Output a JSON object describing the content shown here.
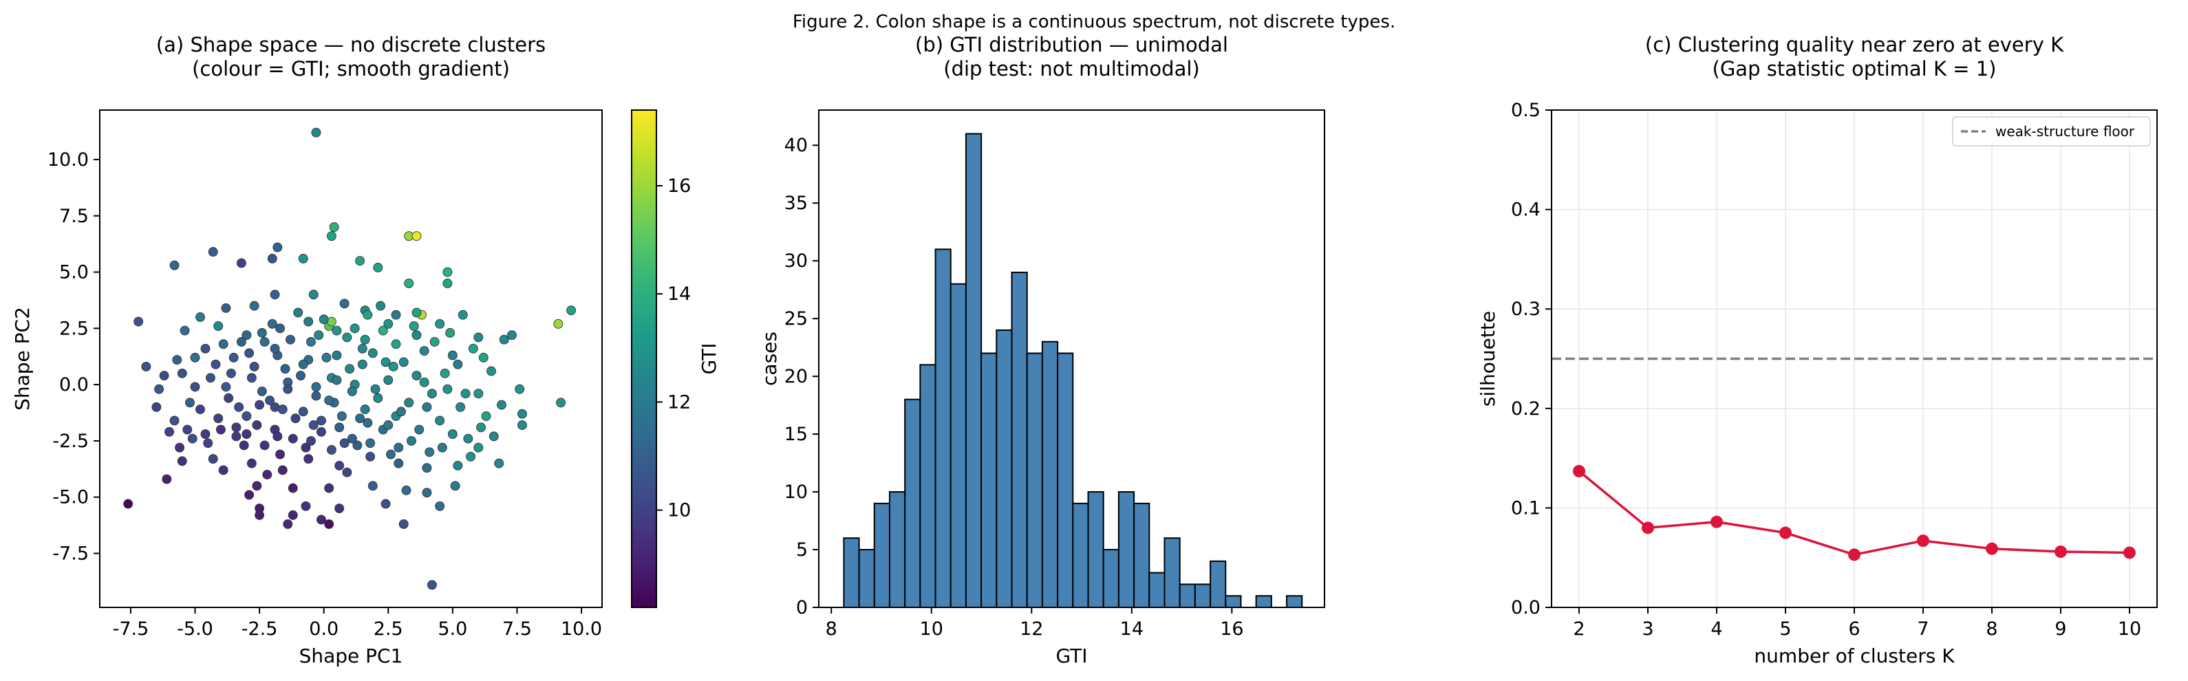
{
  "figure": {
    "title": "Figure 2.  Colon shape is a continuous spectrum, not discrete types."
  },
  "colors": {
    "hist_fill": "#4682b4",
    "line": "#dc143c",
    "floor": "#808080",
    "grid": "#e6e6e6"
  },
  "chart_data": [
    {
      "id": "a",
      "type": "scatter",
      "title": [
        "(a) Shape space — no discrete clusters",
        "(colour = GTI; smooth gradient)"
      ],
      "xlabel": "Shape PC1",
      "ylabel": "Shape PC2",
      "xlim": [
        -8.7,
        10.8
      ],
      "ylim": [
        -9.9,
        12.2
      ],
      "xticks": [
        -7.5,
        -5.0,
        -2.5,
        0.0,
        2.5,
        5.0,
        7.5,
        10.0
      ],
      "yticks": [
        -7.5,
        -5.0,
        -2.5,
        0.0,
        2.5,
        5.0,
        7.5,
        10.0
      ],
      "grid": false,
      "colormap": "viridis",
      "colorbar": {
        "label": "GTI",
        "range": [
          8.2,
          17.4
        ],
        "ticks": [
          10,
          12,
          14,
          16
        ]
      },
      "points": [
        [
          -0.3,
          11.2,
          12.5
        ],
        [
          3.3,
          6.6,
          16.0
        ],
        [
          3.6,
          6.6,
          17.2
        ],
        [
          0.4,
          7.0,
          14.0
        ],
        [
          0.3,
          6.6,
          13.5
        ],
        [
          -1.8,
          6.1,
          11.0
        ],
        [
          -2.0,
          5.6,
          10.6
        ],
        [
          -4.3,
          5.9,
          11.0
        ],
        [
          -5.8,
          5.3,
          11.3
        ],
        [
          -3.2,
          5.4,
          10.0
        ],
        [
          -0.8,
          5.6,
          13.0
        ],
        [
          1.4,
          5.5,
          13.5
        ],
        [
          2.1,
          5.2,
          13.5
        ],
        [
          3.3,
          4.5,
          14.0
        ],
        [
          4.8,
          5.0,
          14.0
        ],
        [
          4.8,
          4.5,
          13.5
        ],
        [
          9.6,
          3.3,
          13.5
        ],
        [
          9.1,
          2.7,
          16.0
        ],
        [
          3.8,
          3.1,
          16.3
        ],
        [
          5.4,
          3.1,
          13.0
        ],
        [
          1.6,
          3.3,
          12.5
        ],
        [
          0.8,
          3.6,
          11.5
        ],
        [
          -0.4,
          4.0,
          12.5
        ],
        [
          -1.9,
          4.0,
          11.0
        ],
        [
          -3.8,
          3.4,
          11.0
        ],
        [
          -4.8,
          3.0,
          12.0
        ],
        [
          -4.1,
          2.6,
          12.5
        ],
        [
          -2.7,
          3.5,
          11.5
        ],
        [
          -7.2,
          2.8,
          10.5
        ],
        [
          -5.4,
          2.4,
          11.5
        ],
        [
          -3.5,
          1.2,
          10.8
        ],
        [
          -3.0,
          2.2,
          11.3
        ],
        [
          -1.7,
          2.5,
          11.0
        ],
        [
          -0.6,
          2.8,
          12.0
        ],
        [
          0.5,
          2.4,
          13.0
        ],
        [
          0.2,
          2.6,
          15.0
        ],
        [
          0.3,
          2.8,
          15.5
        ],
        [
          1.7,
          3.1,
          13.5
        ],
        [
          2.8,
          3.1,
          12.0
        ],
        [
          2.5,
          2.7,
          13.0
        ],
        [
          3.6,
          2.2,
          12.5
        ],
        [
          4.5,
          2.7,
          13.0
        ],
        [
          6.0,
          2.1,
          12.5
        ],
        [
          7.0,
          2.0,
          12.5
        ],
        [
          7.3,
          2.2,
          12.5
        ],
        [
          6.2,
          1.2,
          13.5
        ],
        [
          5.0,
          1.3,
          12.0
        ],
        [
          3.9,
          1.5,
          12.5
        ],
        [
          2.8,
          1.8,
          13.5
        ],
        [
          1.5,
          1.6,
          12.5
        ],
        [
          0.5,
          1.3,
          12.0
        ],
        [
          -0.6,
          1.1,
          11.5
        ],
        [
          -1.8,
          1.3,
          11.0
        ],
        [
          -2.9,
          1.4,
          10.5
        ],
        [
          -4.2,
          0.9,
          10.5
        ],
        [
          -5.5,
          0.5,
          10.5
        ],
        [
          -6.9,
          0.8,
          10.5
        ],
        [
          -6.4,
          -0.2,
          10.8
        ],
        [
          -5.2,
          -0.8,
          11.0
        ],
        [
          -3.8,
          -0.1,
          10.8
        ],
        [
          -2.4,
          -0.3,
          11.0
        ],
        [
          -1.4,
          0.1,
          11.0
        ],
        [
          -0.3,
          -0.1,
          11.5
        ],
        [
          0.3,
          0.3,
          12.5
        ],
        [
          1.2,
          0.0,
          12.5
        ],
        [
          2.5,
          0.2,
          12.5
        ],
        [
          3.6,
          0.4,
          12.5
        ],
        [
          4.8,
          -0.2,
          13.0
        ],
        [
          6.0,
          -0.4,
          13.0
        ],
        [
          7.6,
          -0.2,
          13.0
        ],
        [
          9.2,
          -0.8,
          13.0
        ],
        [
          7.7,
          -1.3,
          12.5
        ],
        [
          7.7,
          -1.8,
          12.5
        ],
        [
          6.3,
          -1.4,
          13.5
        ],
        [
          5.3,
          -1.0,
          12.5
        ],
        [
          4.0,
          -1.0,
          12.0
        ],
        [
          2.8,
          -1.4,
          12.5
        ],
        [
          1.6,
          -1.1,
          12.0
        ],
        [
          0.4,
          -0.8,
          11.5
        ],
        [
          -0.8,
          -1.2,
          10.5
        ],
        [
          -1.9,
          -1.0,
          10.2
        ],
        [
          -3.0,
          -1.4,
          10.5
        ],
        [
          -4.1,
          -1.5,
          10.0
        ],
        [
          -5.8,
          -1.6,
          10.5
        ],
        [
          -5.3,
          -2.0,
          10.0
        ],
        [
          -4.5,
          -2.6,
          10.0
        ],
        [
          -3.4,
          -2.3,
          9.8
        ],
        [
          -2.3,
          -2.7,
          9.5
        ],
        [
          -1.2,
          -2.4,
          9.5
        ],
        [
          -0.1,
          -2.1,
          10.0
        ],
        [
          1.1,
          -2.4,
          11.0
        ],
        [
          2.3,
          -2.0,
          11.5
        ],
        [
          3.4,
          -2.5,
          12.0
        ],
        [
          4.6,
          -2.8,
          12.0
        ],
        [
          6.0,
          -2.8,
          13.0
        ],
        [
          5.7,
          -3.2,
          13.0
        ],
        [
          6.8,
          -3.5,
          12.5
        ],
        [
          5.2,
          -3.6,
          12.5
        ],
        [
          4.0,
          -3.7,
          11.5
        ],
        [
          2.9,
          -3.5,
          11.0
        ],
        [
          1.8,
          -3.2,
          10.5
        ],
        [
          0.6,
          -3.6,
          10.0
        ],
        [
          -0.6,
          -3.3,
          9.5
        ],
        [
          -1.6,
          -3.8,
          9.2
        ],
        [
          -2.8,
          -3.5,
          9.5
        ],
        [
          -4.3,
          -3.3,
          10.2
        ],
        [
          -5.6,
          -2.8,
          9.5
        ],
        [
          -5.5,
          -3.4,
          9.5
        ],
        [
          -6.1,
          -4.2,
          9.0
        ],
        [
          -2.6,
          -4.5,
          9.2
        ],
        [
          -1.2,
          -4.6,
          9.0
        ],
        [
          0.2,
          -4.6,
          9.5
        ],
        [
          1.9,
          -4.5,
          11.0
        ],
        [
          3.2,
          -4.7,
          11.5
        ],
        [
          4.0,
          -4.8,
          11.5
        ],
        [
          5.1,
          -4.5,
          12.0
        ],
        [
          4.5,
          -5.4,
          11.5
        ],
        [
          2.4,
          -5.3,
          10.5
        ],
        [
          0.6,
          -5.5,
          9.5
        ],
        [
          -0.7,
          -5.4,
          9.5
        ],
        [
          -2.9,
          -4.9,
          9.0
        ],
        [
          -2.5,
          -5.5,
          9.0
        ],
        [
          -2.5,
          -5.8,
          9.0
        ],
        [
          -1.2,
          -5.8,
          9.2
        ],
        [
          0.2,
          -6.2,
          8.6
        ],
        [
          -1.4,
          -6.2,
          9.2
        ],
        [
          -0.1,
          -6.0,
          9.2
        ],
        [
          3.1,
          -6.2,
          10.5
        ],
        [
          -7.6,
          -5.3,
          8.4
        ],
        [
          4.2,
          -8.9,
          10.5
        ],
        [
          -6.2,
          0.4,
          10.2
        ],
        [
          -6.0,
          -2.1,
          10.0
        ],
        [
          -5.1,
          -2.4,
          10.5
        ],
        [
          -5.0,
          -0.1,
          10.5
        ],
        [
          -4.6,
          1.6,
          10.5
        ],
        [
          -4.0,
          -2.0,
          9.5
        ],
        [
          -3.6,
          0.5,
          10.5
        ],
        [
          -3.3,
          -1.0,
          10.3
        ],
        [
          -3.1,
          -2.7,
          9.5
        ],
        [
          -2.8,
          0.3,
          10.5
        ],
        [
          -2.6,
          -1.8,
          9.8
        ],
        [
          -2.3,
          1.9,
          11.5
        ],
        [
          -2.1,
          -0.7,
          10.5
        ],
        [
          -1.9,
          -2.0,
          9.5
        ],
        [
          -1.7,
          -3.1,
          9.2
        ],
        [
          -1.5,
          0.7,
          11.0
        ],
        [
          -1.3,
          2.0,
          11.0
        ],
        [
          -1.1,
          -1.5,
          10.0
        ],
        [
          -0.9,
          0.4,
          11.0
        ],
        [
          -0.7,
          -2.8,
          9.5
        ],
        [
          -0.5,
          1.9,
          12.0
        ],
        [
          -0.3,
          -0.5,
          11.0
        ],
        [
          -0.1,
          -1.6,
          10.5
        ],
        [
          0.1,
          1.2,
          12.0
        ],
        [
          0.3,
          -2.9,
          10.5
        ],
        [
          0.5,
          0.2,
          12.0
        ],
        [
          0.7,
          -1.4,
          11.5
        ],
        [
          0.9,
          2.1,
          13.0
        ],
        [
          1.1,
          -0.3,
          12.0
        ],
        [
          1.3,
          -2.7,
          11.0
        ],
        [
          1.5,
          0.9,
          12.5
        ],
        [
          1.7,
          -1.7,
          11.5
        ],
        [
          1.9,
          1.4,
          12.5
        ],
        [
          2.1,
          -0.6,
          12.5
        ],
        [
          2.3,
          2.4,
          14.0
        ],
        [
          2.5,
          -1.8,
          12.0
        ],
        [
          2.7,
          0.8,
          13.0
        ],
        [
          2.9,
          -2.8,
          11.5
        ],
        [
          3.1,
          1.0,
          12.5
        ],
        [
          3.3,
          -0.8,
          12.5
        ],
        [
          3.5,
          2.6,
          13.5
        ],
        [
          3.7,
          -2.0,
          12.0
        ],
        [
          3.9,
          0.1,
          13.0
        ],
        [
          4.1,
          -3.0,
          12.0
        ],
        [
          4.3,
          1.9,
          13.5
        ],
        [
          4.5,
          -1.6,
          12.5
        ],
        [
          4.7,
          0.5,
          13.5
        ],
        [
          5.0,
          -2.2,
          12.5
        ],
        [
          5.2,
          0.9,
          12.0
        ],
        [
          5.5,
          -0.4,
          13.0
        ],
        [
          5.8,
          1.6,
          13.5
        ],
        [
          6.1,
          -1.9,
          13.0
        ],
        [
          6.5,
          0.6,
          13.0
        ],
        [
          6.9,
          -0.9,
          12.5
        ],
        [
          -4.8,
          -1.1,
          10.0
        ],
        [
          -4.4,
          0.3,
          10.5
        ],
        [
          -3.9,
          -3.8,
          9.5
        ],
        [
          -3.2,
          1.9,
          11.0
        ],
        [
          -2.5,
          -0.9,
          10.0
        ],
        [
          -2.0,
          2.7,
          11.5
        ],
        [
          -1.6,
          -1.1,
          10.5
        ],
        [
          -1.0,
          3.2,
          12.0
        ],
        [
          -0.5,
          -2.5,
          10.0
        ],
        [
          0.0,
          2.9,
          12.5
        ],
        [
          0.6,
          -1.9,
          11.0
        ],
        [
          1.2,
          2.5,
          13.0
        ],
        [
          1.8,
          -2.6,
          11.5
        ],
        [
          2.4,
          1.0,
          13.0
        ],
        [
          3.0,
          -1.2,
          12.0
        ],
        [
          3.6,
          3.2,
          13.5
        ],
        [
          4.2,
          -0.4,
          12.5
        ],
        [
          4.9,
          2.3,
          13.5
        ],
        [
          -3.7,
          -0.6,
          10.0
        ],
        [
          -2.7,
          0.8,
          10.5
        ],
        [
          -1.8,
          -2.3,
          9.5
        ],
        [
          -0.8,
          0.9,
          11.5
        ],
        [
          0.2,
          -0.7,
          11.5
        ],
        [
          1.0,
          0.7,
          12.5
        ],
        [
          2.0,
          -0.2,
          12.5
        ],
        [
          -1.4,
          -0.2,
          10.5
        ],
        [
          -0.4,
          -1.8,
          10.5
        ],
        [
          1.4,
          -1.5,
          11.5
        ],
        [
          -3.4,
          -1.9,
          9.8
        ],
        [
          2.6,
          -3.1,
          11.5
        ],
        [
          -2.2,
          -4.0,
          9.2
        ],
        [
          0.9,
          -3.9,
          10.2
        ],
        [
          -5.7,
          1.1,
          11.0
        ],
        [
          -6.5,
          -1.0,
          10.0
        ],
        [
          5.6,
          -2.4,
          12.5
        ],
        [
          6.6,
          -2.3,
          12.5
        ],
        [
          -4.6,
          -2.2,
          9.8
        ],
        [
          -3.0,
          -2.2,
          9.6
        ],
        [
          -2.4,
          2.3,
          11.5
        ],
        [
          -0.2,
          2.2,
          12.5
        ],
        [
          1.6,
          2.0,
          13.0
        ],
        [
          2.2,
          3.5,
          12.5
        ],
        [
          -1.9,
          1.6,
          11.0
        ],
        [
          -3.9,
          1.8,
          11.5
        ],
        [
          -5.0,
          1.2,
          11.5
        ],
        [
          0.8,
          -2.6,
          10.5
        ]
      ]
    },
    {
      "id": "b",
      "type": "bar",
      "title": [
        "(b) GTI distribution — unimodal",
        "(dip test: not multimodal)"
      ],
      "xlabel": "GTI",
      "ylabel": "cases",
      "xlim": [
        7.75,
        17.85
      ],
      "ylim": [
        0,
        43.05
      ],
      "xticks": [
        8,
        10,
        12,
        14,
        16
      ],
      "yticks": [
        0,
        5,
        10,
        15,
        20,
        25,
        30,
        35,
        40
      ],
      "grid": false,
      "bin_start": 8.25,
      "bin_width": 0.305,
      "counts": [
        6,
        5,
        9,
        10,
        18,
        21,
        31,
        28,
        41,
        22,
        24,
        29,
        22,
        23,
        22,
        9,
        10,
        5,
        10,
        9,
        3,
        6,
        2,
        2,
        4,
        1,
        0,
        1,
        0,
        1
      ]
    },
    {
      "id": "c",
      "type": "line",
      "title": [
        "(c) Clustering quality near zero at every K",
        "(Gap statistic optimal K = 1)"
      ],
      "xlabel": "number of clusters K",
      "ylabel": "silhouette",
      "xlim": [
        1.6,
        10.4
      ],
      "ylim": [
        0,
        0.5
      ],
      "xticks": [
        2,
        3,
        4,
        5,
        6,
        7,
        8,
        9,
        10
      ],
      "yticks": [
        0.0,
        0.1,
        0.2,
        0.3,
        0.4,
        0.5
      ],
      "grid": true,
      "x": [
        2,
        3,
        4,
        5,
        6,
        7,
        8,
        9,
        10
      ],
      "y": [
        0.137,
        0.08,
        0.086,
        0.075,
        0.053,
        0.067,
        0.059,
        0.056,
        0.055
      ],
      "reference_line": {
        "y": 0.25,
        "label": "weak-structure floor"
      },
      "legend": "top-right"
    }
  ]
}
